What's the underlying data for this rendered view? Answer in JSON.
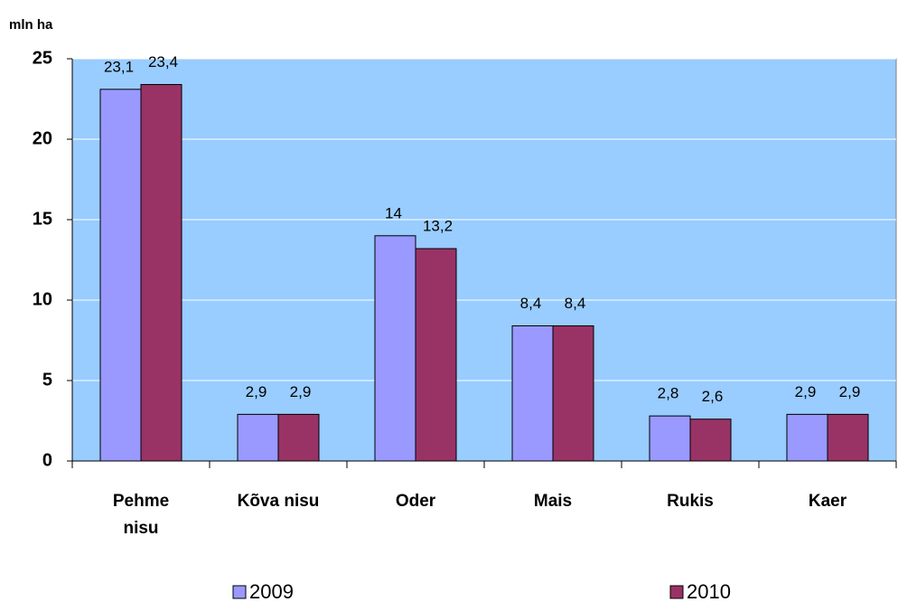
{
  "chart_data": {
    "type": "bar",
    "y_label": "mln ha",
    "categories": [
      "Pehme nisu",
      "Kõva nisu",
      "Oder",
      "Mais",
      "Rukis",
      "Kaer"
    ],
    "series": [
      {
        "name": "2009",
        "color": "#9999ff",
        "values": [
          23.1,
          2.9,
          14,
          8.4,
          2.8,
          2.9
        ],
        "value_labels": [
          "23,1",
          "2,9",
          "14",
          "8,4",
          "2,8",
          "2,9"
        ]
      },
      {
        "name": "2010",
        "color": "#993366",
        "values": [
          23.4,
          2.9,
          13.2,
          8.4,
          2.6,
          2.9
        ],
        "value_labels": [
          "23,4",
          "2,9",
          "13,2",
          "8,4",
          "2,6",
          "2,9"
        ]
      }
    ],
    "ylim": [
      0,
      25
    ],
    "yticks": [
      0,
      5,
      10,
      15,
      20,
      25
    ],
    "grid": true,
    "background": "#99ccff",
    "legend": "bottom"
  }
}
